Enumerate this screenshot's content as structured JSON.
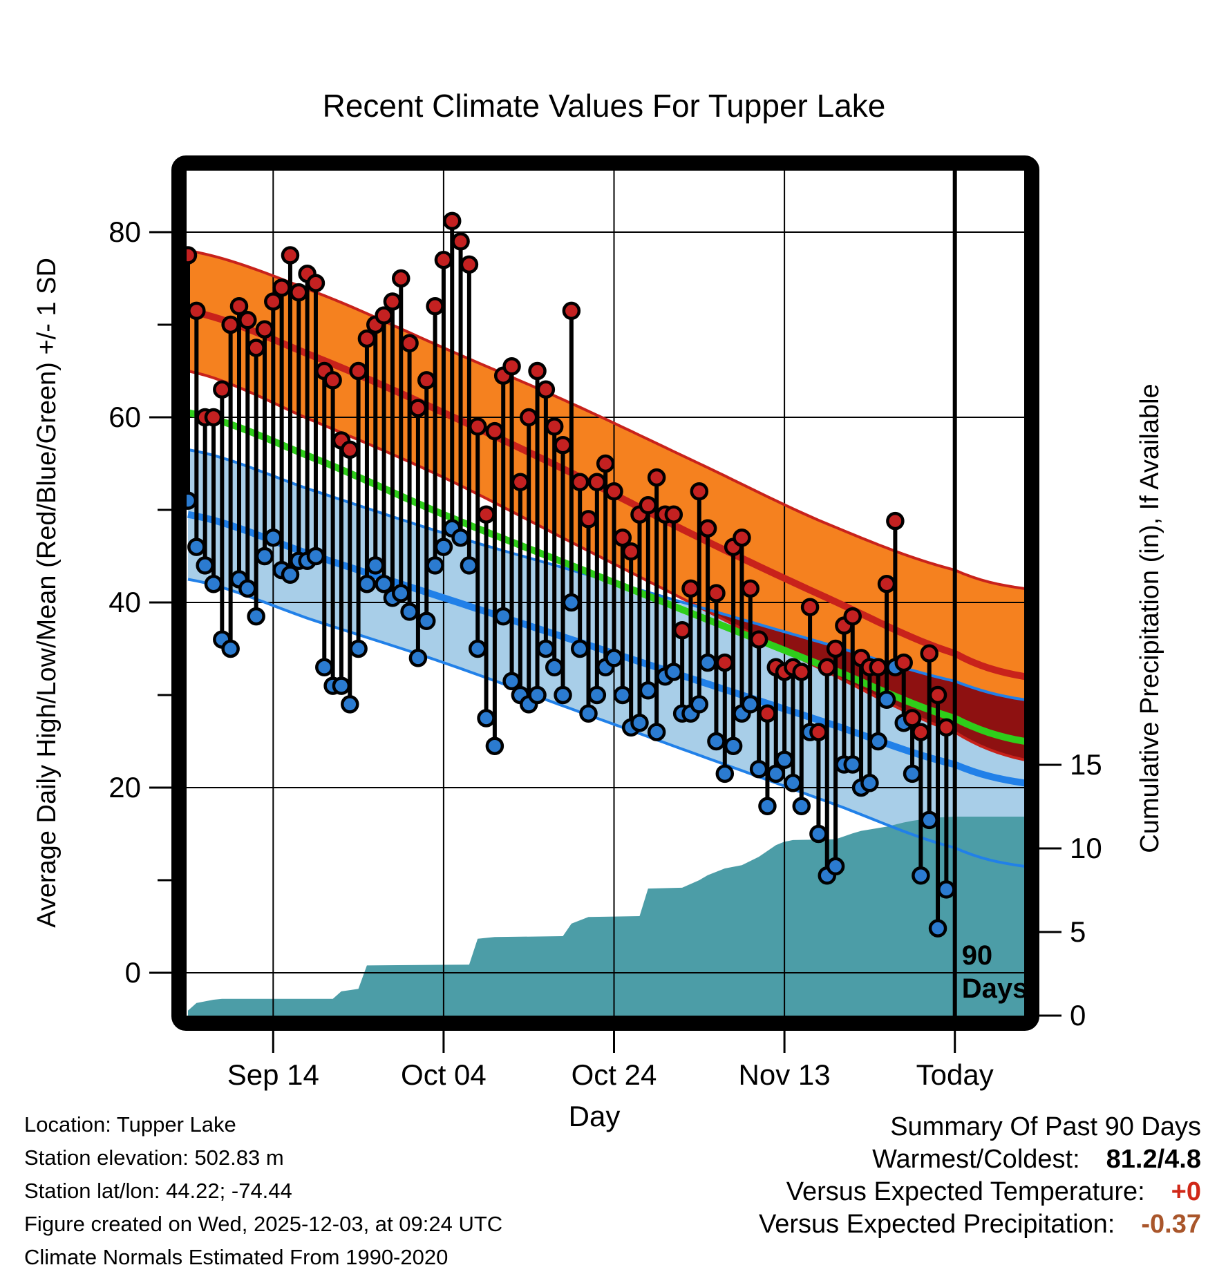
{
  "title": "Recent Climate Values For Tupper Lake",
  "axes": {
    "x": {
      "label": "Day",
      "ticks": [
        {
          "label": "Sep 14",
          "day": 10
        },
        {
          "label": "Oct 04",
          "day": 30
        },
        {
          "label": "Oct 24",
          "day": 50
        },
        {
          "label": "Nov 13",
          "day": 70
        },
        {
          "label": "Today",
          "day": 90
        }
      ]
    },
    "y_left": {
      "label": "Average Daily High/Low/Mean (Red/Blue/Green) +/- 1 SD",
      "ticks": [
        0,
        20,
        40,
        60,
        80
      ],
      "minor_ticks": [
        10,
        30,
        50,
        70
      ]
    },
    "y_right": {
      "label": "Cumulative Precipitation (in), If Available",
      "ticks": [
        0,
        5,
        10,
        15
      ]
    }
  },
  "chart_data": {
    "type": "line",
    "x_unit": "day index (0 = ~Sep 4, 90 = Today = Dec 3)",
    "ylim_temp": [
      -4.6,
      86.6
    ],
    "normals": {
      "days": [
        0,
        15,
        30,
        45,
        60,
        75,
        90,
        98.2
      ],
      "high_upper": [
        78,
        73.5,
        67.5,
        61.5,
        55,
        48.5,
        43.5,
        41.5
      ],
      "high_mean": [
        71.5,
        66.5,
        60.5,
        54,
        47,
        40.5,
        34.5,
        32
      ],
      "high_lower": [
        65,
        59.5,
        53.5,
        46.5,
        39.5,
        32.5,
        26,
        23
      ],
      "mean": [
        60.5,
        55.5,
        49.5,
        44,
        38.5,
        33,
        27.5,
        25
      ],
      "low_upper": [
        56.5,
        52,
        47.5,
        43.5,
        39.5,
        35.5,
        31.5,
        29.5
      ],
      "low_mean": [
        49.5,
        45,
        40.5,
        36,
        31.5,
        27,
        22.5,
        20.5
      ],
      "low_lower": [
        42.5,
        38,
        33.5,
        28.5,
        23.5,
        18.5,
        13.5,
        11.5
      ]
    },
    "daily": {
      "highs": [
        77.5,
        71.5,
        60,
        60,
        63,
        70,
        72,
        70.5,
        67.5,
        69.5,
        72.5,
        74,
        77.5,
        73.5,
        75.5,
        74.5,
        65,
        64,
        57.5,
        56.5,
        65,
        68.5,
        70,
        71,
        72.5,
        75,
        68,
        61,
        64,
        72,
        77,
        81.2,
        79,
        76.5,
        59,
        49.5,
        58.5,
        64.5,
        65.5,
        53,
        60,
        65,
        63,
        59,
        57,
        71.5,
        53,
        49,
        53,
        55,
        52,
        47,
        45.5,
        49.5,
        50.5,
        53.5,
        49.5,
        49.5,
        37,
        41.5,
        52,
        48,
        41,
        33.5,
        46,
        47,
        41.5,
        36,
        28,
        33,
        32.5,
        33,
        32.5,
        39.5,
        26,
        33,
        35,
        37.5,
        38.5,
        34,
        33,
        33,
        42,
        48.8,
        33.5,
        27.5,
        26,
        34.5,
        30,
        26.5
      ],
      "lows": [
        51,
        46,
        44,
        42,
        36,
        35,
        42.5,
        41.5,
        38.5,
        45,
        47,
        43.5,
        43,
        44.5,
        44.5,
        45,
        33,
        31,
        31,
        29,
        35,
        42,
        44,
        42,
        40.5,
        41,
        39,
        34,
        38,
        44,
        46,
        48,
        47,
        44,
        35,
        27.5,
        24.5,
        38.5,
        31.5,
        30,
        29,
        30,
        35,
        33,
        30,
        40,
        35,
        28,
        30,
        33,
        34,
        30,
        26.5,
        27,
        30.5,
        26,
        32,
        32.5,
        28,
        28,
        29,
        33.5,
        25,
        21.5,
        24.5,
        28,
        29,
        22,
        18,
        21.5,
        23,
        20.5,
        18,
        26,
        15,
        10.5,
        11.5,
        22.5,
        22.5,
        20,
        20.5,
        25,
        29.5,
        33,
        27,
        21.5,
        10.5,
        16.5,
        4.8,
        9
      ]
    },
    "precip_cumulative": {
      "days": [
        0,
        1,
        3,
        4,
        17,
        18,
        20,
        21,
        33,
        34,
        36,
        44,
        45,
        47,
        53,
        54,
        58,
        60,
        61,
        63,
        65,
        67,
        69,
        70,
        71,
        76,
        78,
        79,
        82,
        84,
        85,
        87,
        88,
        90,
        98.2
      ],
      "inches": [
        0.3,
        0.75,
        0.95,
        1.0,
        1.0,
        1.45,
        1.6,
        3.0,
        3.05,
        4.6,
        4.7,
        4.75,
        5.5,
        5.9,
        5.95,
        7.6,
        7.65,
        8.1,
        8.4,
        8.8,
        9.0,
        9.5,
        10.2,
        10.4,
        10.5,
        10.55,
        10.9,
        11.05,
        11.3,
        11.55,
        11.65,
        11.8,
        11.85,
        11.9,
        11.9
      ]
    },
    "annotation_90days": {
      "line1": "90",
      "line2": "Days",
      "day": 90
    }
  },
  "footer_left": [
    "Location: Tupper Lake",
    "Station elevation: 502.83 m",
    "Station lat/lon: 44.22; -74.44",
    "Figure created on Wed, 2025-12-03, at 09:24 UTC",
    "Climate Normals Estimated From 1990-2020"
  ],
  "summary": {
    "heading": "Summary Of Past 90 Days",
    "rows": [
      {
        "label": "Warmest/Coldest:",
        "value": "81.2/4.8",
        "color": "#000000"
      },
      {
        "label": "Versus Expected Temperature:",
        "value": "+0",
        "color": "#D02818"
      },
      {
        "label": "Versus Expected Precipitation:",
        "value": "-0.37",
        "color": "#A9562B"
      }
    ]
  },
  "colors": {
    "background": "#ffffff",
    "frame": "#000000",
    "grid": "#000000",
    "high_band": "#F5811F",
    "high_edge": "#C8221B",
    "high_mean_line": "#C8221B",
    "overlap_band": "#8E1111",
    "mean_line_green": "#2FCE1A",
    "low_band": "#A8CEE8",
    "low_edge": "#2180E8",
    "low_mean_line": "#2180E8",
    "high_dot": "#C42121",
    "low_dot": "#2B7BD0",
    "stem": "#000000",
    "precip_fill": "#4C9DA7",
    "today_line": "#000000"
  }
}
